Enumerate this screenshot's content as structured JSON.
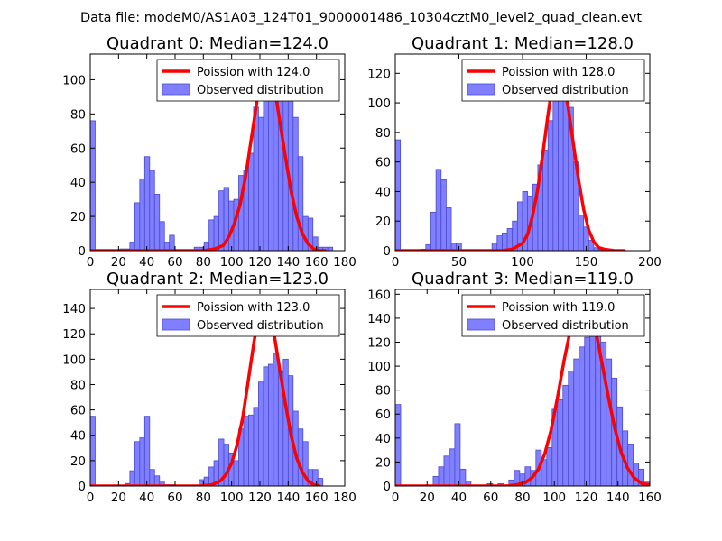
{
  "figure_title": "Data file: modeM0/AS1A03_124T01_9000001486_10304cztM0_level2_quad_clean.evt",
  "colors": {
    "poisson": "#ff0000",
    "hist_fill": "#7f7fff",
    "hist_edge": "#4a4ad0",
    "axis": "#000000",
    "background": "#ffffff"
  },
  "chart_data": [
    {
      "type": "bar",
      "title": "Quadrant 0: Median=124.0",
      "median": 124.0,
      "legend_position": "upper-right",
      "legend": [
        "Poission with 124.0",
        "Observed distribution"
      ],
      "xlim": [
        0,
        180
      ],
      "ylim": [
        0,
        115
      ],
      "xticks": [
        0,
        20,
        40,
        60,
        80,
        100,
        120,
        140,
        160,
        180
      ],
      "yticks": [
        0,
        20,
        40,
        60,
        80,
        100
      ],
      "bin_width": 3.5,
      "bins_x": [
        0,
        3.5,
        7,
        10.5,
        14,
        17.5,
        21,
        24.5,
        28,
        31.5,
        35,
        38.5,
        42,
        45.5,
        49,
        52.5,
        56,
        59.5,
        63,
        66.5,
        70,
        73.5,
        77,
        80.5,
        84,
        87.5,
        91,
        94.5,
        98,
        101.5,
        105,
        108.5,
        112,
        115.5,
        119,
        122.5,
        126,
        129.5,
        133,
        136.5,
        140,
        143.5,
        147,
        150.5,
        154,
        157.5,
        161,
        164.5,
        168
      ],
      "counts": [
        76,
        0,
        0,
        0,
        0,
        0,
        1,
        1,
        5,
        28,
        42,
        55,
        47,
        33,
        17,
        5,
        9,
        0,
        0,
        0,
        0,
        2,
        2,
        5,
        18,
        20,
        35,
        37,
        29,
        30,
        44,
        47,
        57,
        84,
        78,
        97,
        97,
        105,
        104,
        100,
        96,
        78,
        55,
        20,
        19,
        8,
        2,
        2,
        2
      ],
      "poisson_curve": {
        "x": [
          0,
          80,
          88,
          94,
          98,
          102,
          106,
          110,
          114,
          118,
          122,
          124,
          126,
          130,
          134,
          138,
          142,
          146,
          150,
          154,
          158,
          162,
          166
        ],
        "y": [
          0,
          0,
          1,
          3,
          8,
          16,
          27,
          44,
          66,
          88,
          103,
          110,
          108,
          97,
          76,
          55,
          35,
          20,
          10,
          4,
          1,
          0,
          0
        ]
      }
    },
    {
      "type": "bar",
      "title": "Quadrant 1: Median=128.0",
      "median": 128.0,
      "legend_position": "upper-right",
      "legend": [
        "Poission with 128.0",
        "Observed distribution"
      ],
      "xlim": [
        0,
        200
      ],
      "ylim": [
        0,
        133
      ],
      "xticks": [
        0,
        50,
        100,
        150,
        200
      ],
      "yticks": [
        0,
        20,
        40,
        60,
        80,
        100,
        120
      ],
      "bin_width": 4,
      "bins_x": [
        0,
        4,
        8,
        12,
        16,
        20,
        24,
        28,
        32,
        36,
        40,
        44,
        48,
        52,
        56,
        60,
        64,
        68,
        72,
        76,
        80,
        84,
        88,
        92,
        96,
        100,
        104,
        108,
        112,
        116,
        120,
        124,
        128,
        132,
        136,
        140,
        144,
        148,
        152,
        156,
        160,
        164,
        168,
        172,
        176
      ],
      "counts": [
        75,
        0,
        0,
        0,
        0,
        1,
        4,
        26,
        55,
        48,
        29,
        5,
        5,
        0,
        0,
        0,
        0,
        0,
        0,
        5,
        10,
        12,
        15,
        20,
        33,
        40,
        37,
        45,
        58,
        68,
        88,
        113,
        124,
        104,
        97,
        60,
        24,
        16,
        7,
        2,
        1,
        1,
        0,
        0,
        0
      ],
      "poisson_curve": {
        "x": [
          0,
          84,
          92,
          100,
          104,
          108,
          112,
          116,
          120,
          124,
          128,
          132,
          136,
          140,
          144,
          148,
          152,
          156,
          160,
          164,
          172,
          180
        ],
        "y": [
          0,
          0,
          1,
          5,
          11,
          24,
          42,
          66,
          92,
          115,
          125,
          116,
          96,
          72,
          48,
          28,
          14,
          6,
          2,
          1,
          0,
          0
        ]
      }
    },
    {
      "type": "bar",
      "title": "Quadrant 2: Median=123.0",
      "median": 123.0,
      "legend_position": "upper-right",
      "legend": [
        "Poission with 123.0",
        "Observed distribution"
      ],
      "xlim": [
        0,
        180
      ],
      "ylim": [
        0,
        155
      ],
      "xticks": [
        0,
        20,
        40,
        60,
        80,
        100,
        120,
        140,
        160,
        180
      ],
      "yticks": [
        0,
        20,
        40,
        60,
        80,
        100,
        120,
        140
      ],
      "bin_width": 3.5,
      "bins_x": [
        0,
        3.5,
        7,
        10.5,
        14,
        17.5,
        21,
        24.5,
        28,
        31.5,
        35,
        38.5,
        42,
        45.5,
        49,
        52.5,
        56,
        59.5,
        63,
        66.5,
        70,
        73.5,
        77,
        80.5,
        84,
        87.5,
        91,
        94.5,
        98,
        101.5,
        105,
        108.5,
        112,
        115.5,
        119,
        122.5,
        126,
        129.5,
        133,
        136.5,
        140,
        143.5,
        147,
        150.5,
        154,
        157.5,
        161
      ],
      "counts": [
        55,
        0,
        0,
        0,
        0,
        0,
        0,
        2,
        12,
        35,
        38,
        55,
        13,
        8,
        4,
        1,
        1,
        0,
        0,
        0,
        0,
        0,
        5,
        7,
        15,
        20,
        37,
        33,
        26,
        20,
        45,
        55,
        56,
        62,
        82,
        94,
        96,
        105,
        90,
        100,
        87,
        59,
        45,
        35,
        13,
        13,
        6
      ],
      "poisson_curve": {
        "x": [
          0,
          78,
          86,
          92,
          96,
          100,
          104,
          108,
          112,
          116,
          120,
          123,
          126,
          130,
          134,
          138,
          142,
          146,
          150,
          154,
          158,
          162
        ],
        "y": [
          0,
          0,
          1,
          4,
          9,
          18,
          33,
          55,
          85,
          115,
          140,
          148,
          142,
          120,
          92,
          65,
          40,
          22,
          11,
          4,
          1,
          0
        ]
      }
    },
    {
      "type": "bar",
      "title": "Quadrant 3: Median=119.0",
      "median": 119.0,
      "legend_position": "upper-right",
      "legend": [
        "Poission with 119.0",
        "Observed distribution"
      ],
      "xlim": [
        0,
        160
      ],
      "ylim": [
        0,
        164
      ],
      "xticks": [
        0,
        20,
        40,
        60,
        80,
        100,
        120,
        140,
        160
      ],
      "yticks": [
        0,
        20,
        40,
        60,
        80,
        100,
        120,
        140,
        160
      ],
      "bin_width": 3.4,
      "bins_x": [
        0,
        3.4,
        6.8,
        10.2,
        13.6,
        17,
        20.4,
        23.8,
        27.2,
        30.6,
        34,
        37.4,
        40.8,
        44.2,
        47.6,
        51,
        54.4,
        57.8,
        61.2,
        64.6,
        68,
        71.4,
        74.8,
        78.2,
        81.6,
        85,
        88.4,
        91.8,
        95.2,
        98.6,
        102,
        105.4,
        108.8,
        112.2,
        115.6,
        119,
        122.4,
        125.8,
        129.2,
        132.6,
        136,
        139.4,
        142.8,
        146.2,
        149.6,
        153,
        156.4
      ],
      "counts": [
        68,
        0,
        0,
        0,
        0,
        0,
        0,
        8,
        16,
        25,
        31,
        52,
        14,
        4,
        0,
        0,
        0,
        2,
        0,
        2,
        0,
        5,
        13,
        10,
        16,
        13,
        30,
        22,
        32,
        64,
        72,
        84,
        96,
        106,
        116,
        124,
        144,
        126,
        120,
        106,
        90,
        66,
        46,
        35,
        19,
        14,
        4
      ],
      "poisson_curve": {
        "x": [
          0,
          70,
          76,
          82,
          86,
          90,
          94,
          98,
          102,
          106,
          110,
          114,
          119,
          122,
          126,
          130,
          134,
          138,
          142,
          146,
          150,
          155,
          160
        ],
        "y": [
          0,
          0,
          1,
          3,
          7,
          14,
          27,
          47,
          74,
          104,
          130,
          148,
          155,
          150,
          130,
          102,
          74,
          48,
          28,
          15,
          7,
          2,
          1
        ]
      }
    }
  ]
}
